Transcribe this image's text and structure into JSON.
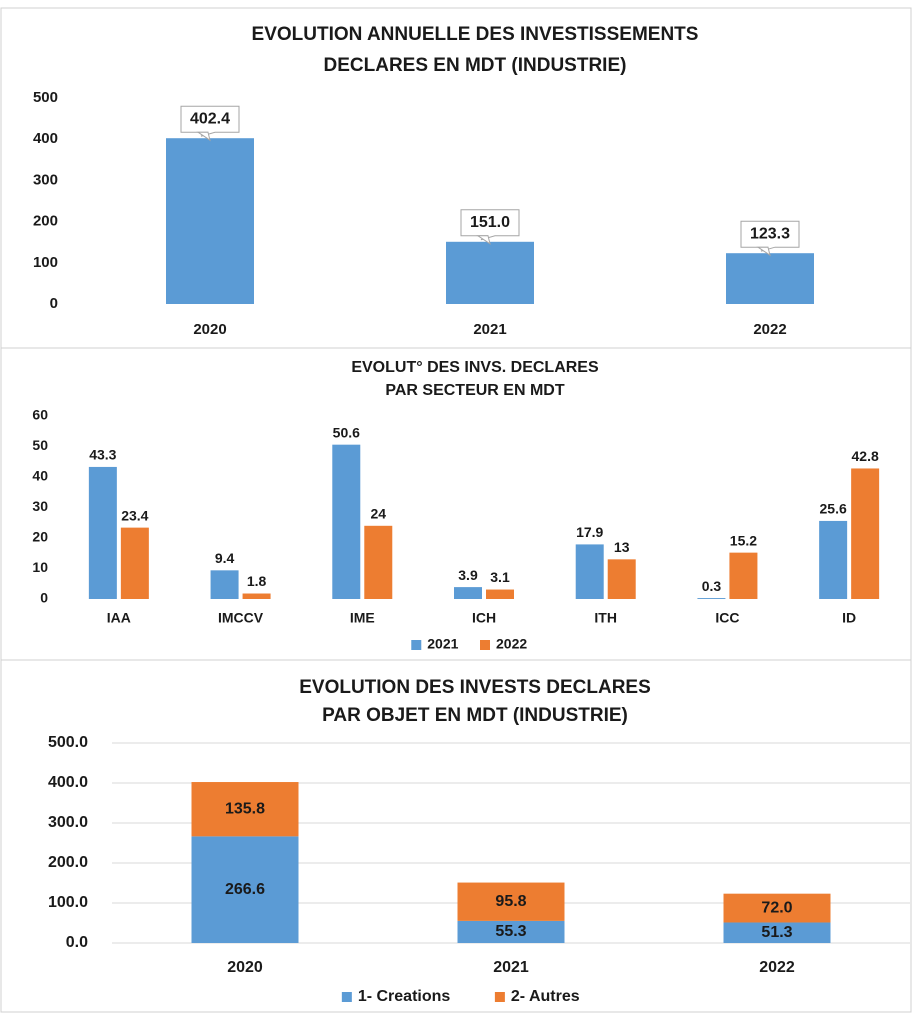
{
  "chart_data": [
    {
      "type": "bar",
      "title": [
        "EVOLUTION ANNUELLE DES INVESTISSEMENTS",
        "DECLARES EN MDT (INDUSTRIE)"
      ],
      "categories": [
        "2020",
        "2021",
        "2022"
      ],
      "values": [
        402.4,
        151.0,
        123.3
      ],
      "value_labels": [
        "402.4",
        "151.0",
        "123.3"
      ],
      "color": "#5b9bd5",
      "ylim": [
        0,
        500
      ],
      "yticks": [
        0,
        100,
        200,
        300,
        400,
        500
      ],
      "grid": false
    },
    {
      "type": "bar",
      "title": [
        "EVOLUT° DES INVS. DECLARES",
        "PAR SECTEUR EN MDT"
      ],
      "categories": [
        "IAA",
        "IMCCV",
        "IME",
        "ICH",
        "ITH",
        "ICC",
        "ID"
      ],
      "series": [
        {
          "name": "2021",
          "color": "#5b9bd5",
          "values": [
            43.3,
            9.4,
            50.6,
            3.9,
            17.9,
            0.3,
            25.6
          ]
        },
        {
          "name": "2022",
          "color": "#ed7d31",
          "values": [
            23.4,
            1.8,
            24,
            3.1,
            13,
            15.2,
            42.8
          ]
        }
      ],
      "ylim": [
        0,
        60
      ],
      "yticks": [
        0,
        10,
        20,
        30,
        40,
        50,
        60
      ],
      "grid": false,
      "legend": "bottom"
    },
    {
      "type": "bar",
      "stacked": true,
      "title": [
        "EVOLUTION DES INVESTS DECLARES",
        "PAR OBJET EN MDT (INDUSTRIE)"
      ],
      "categories": [
        "2020",
        "2021",
        "2022"
      ],
      "series": [
        {
          "name": "1- Creations",
          "color": "#5b9bd5",
          "values": [
            266.6,
            55.3,
            51.3
          ]
        },
        {
          "name": "2- Autres",
          "color": "#ed7d31",
          "values": [
            135.8,
            95.8,
            72.0
          ],
          "value_labels": [
            "135.8",
            "95.8",
            "72.0"
          ]
        }
      ],
      "ylim": [
        0,
        500
      ],
      "yticks": [
        {
          "value": 0,
          "label": "0.0"
        },
        {
          "value": 100,
          "label": "100.0"
        },
        {
          "value": 200,
          "label": "200.0"
        },
        {
          "value": 300,
          "label": "300.0"
        },
        {
          "value": 400,
          "label": "400.0"
        },
        {
          "value": 500,
          "label": "500.0"
        }
      ],
      "grid": true,
      "legend": "bottom"
    }
  ]
}
